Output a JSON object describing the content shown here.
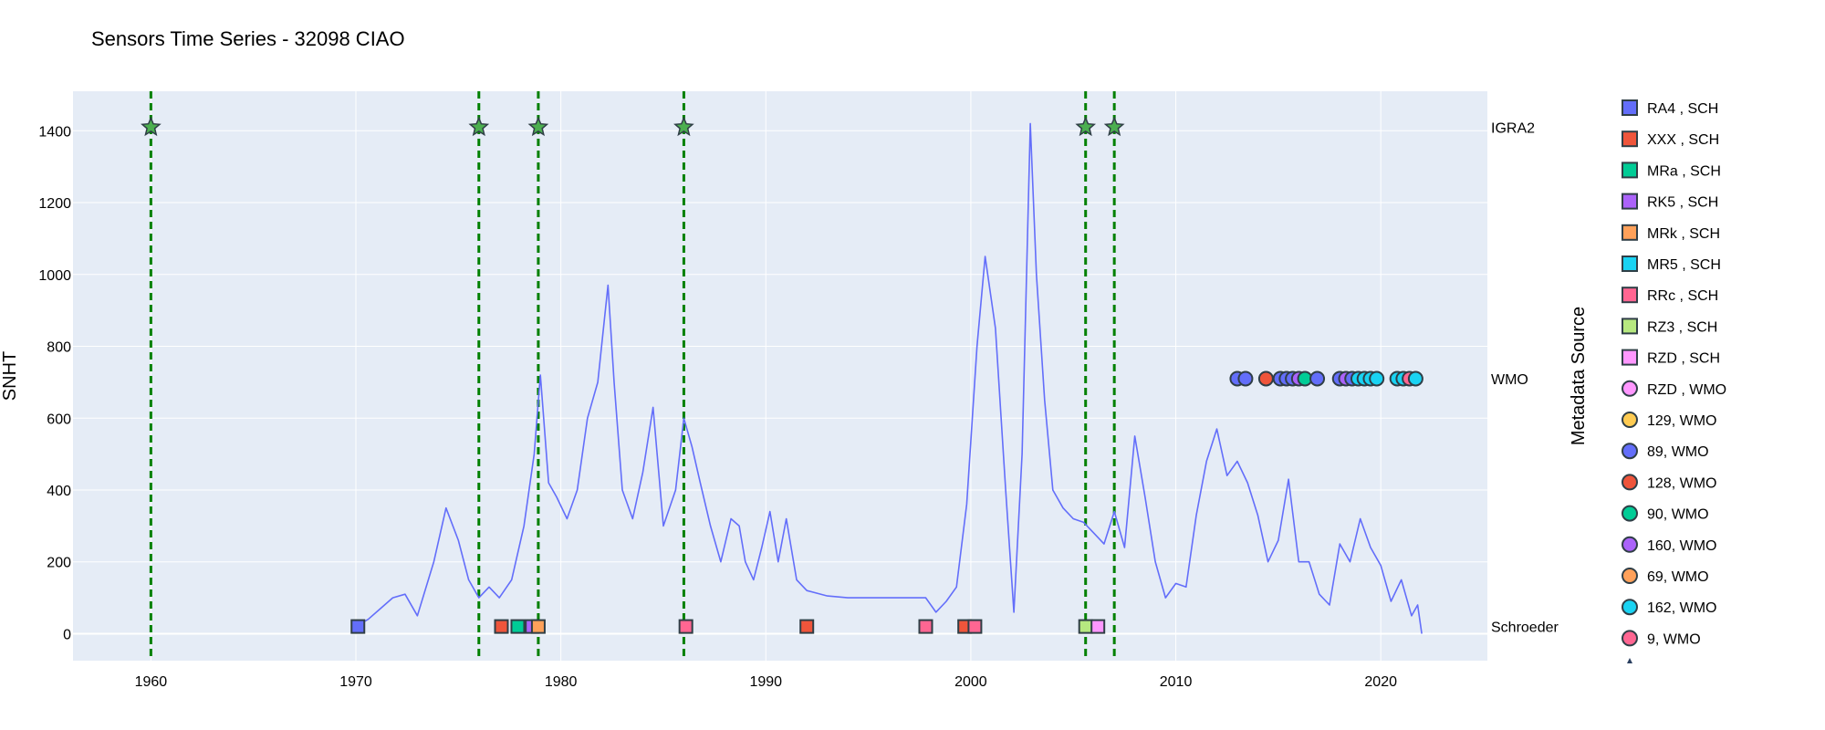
{
  "chart_data": {
    "type": "line",
    "title": "Sensors Time Series - 32098 CIAO",
    "xlabel": "",
    "ylabel": "SNHT",
    "legend_title": "Metadata Source",
    "xlim": [
      1956.2,
      2025.2
    ],
    "ylim": [
      -75,
      1510
    ],
    "x_ticks": [
      1960,
      1970,
      1980,
      1990,
      2000,
      2010,
      2020
    ],
    "y_ticks": [
      0,
      200,
      400,
      600,
      800,
      1000,
      1200,
      1400
    ],
    "grid": true,
    "plot_background": "#E5ECF6",
    "line_color": "#636EFA",
    "line_series": {
      "x": [
        1970.0,
        1970.6,
        1971.2,
        1971.8,
        1972.4,
        1973.0,
        1973.8,
        1974.4,
        1975.0,
        1975.5,
        1976.0,
        1976.5,
        1977.0,
        1977.6,
        1978.2,
        1978.7,
        1979.0,
        1979.4,
        1979.8,
        1980.3,
        1980.8,
        1981.3,
        1981.8,
        1982.3,
        1982.6,
        1983.0,
        1983.5,
        1984.0,
        1984.5,
        1985.0,
        1985.6,
        1986.0,
        1986.4,
        1986.8,
        1987.3,
        1987.8,
        1988.3,
        1988.7,
        1989.0,
        1989.4,
        1989.8,
        1990.2,
        1990.6,
        1991.0,
        1991.5,
        1992.0,
        1993.0,
        1994.0,
        1995.0,
        1996.0,
        1997.0,
        1997.8,
        1998.3,
        1998.8,
        1999.3,
        1999.8,
        2000.3,
        2000.7,
        2001.2,
        2001.7,
        2002.1,
        2002.5,
        2002.9,
        2003.2,
        2003.6,
        2004.0,
        2004.5,
        2005.0,
        2005.5,
        2006.0,
        2006.5,
        2007.0,
        2007.5,
        2008.0,
        2008.5,
        2009.0,
        2009.5,
        2010.0,
        2010.5,
        2011.0,
        2011.5,
        2012.0,
        2012.5,
        2013.0,
        2013.5,
        2014.0,
        2014.5,
        2015.0,
        2015.5,
        2016.0,
        2016.5,
        2017.0,
        2017.5,
        2018.0,
        2018.5,
        2019.0,
        2019.5,
        2020.0,
        2020.5,
        2021.0,
        2021.5,
        2021.8,
        2022.0
      ],
      "y": [
        20,
        40,
        70,
        100,
        110,
        50,
        200,
        350,
        260,
        150,
        100,
        130,
        100,
        150,
        300,
        500,
        720,
        420,
        380,
        320,
        400,
        600,
        700,
        970,
        700,
        400,
        320,
        450,
        630,
        300,
        400,
        600,
        520,
        420,
        300,
        200,
        320,
        300,
        200,
        150,
        240,
        340,
        200,
        320,
        150,
        120,
        105,
        100,
        100,
        100,
        100,
        100,
        60,
        90,
        130,
        360,
        800,
        1050,
        850,
        400,
        60,
        500,
        1420,
        1000,
        650,
        400,
        350,
        320,
        310,
        280,
        250,
        340,
        240,
        550,
        380,
        200,
        100,
        140,
        130,
        330,
        480,
        570,
        440,
        480,
        420,
        330,
        200,
        260,
        430,
        200,
        200,
        110,
        80,
        250,
        200,
        320,
        240,
        190,
        90,
        150,
        50,
        80,
        0
      ]
    },
    "event_lines_x": [
      1960.0,
      1976.0,
      1978.9,
      1986.0,
      2005.6,
      2007.0
    ],
    "row_labels": [
      {
        "label": "IGRA2",
        "y": 1410
      },
      {
        "label": "WMO",
        "y": 710
      },
      {
        "label": "Schroeder",
        "y": 20
      }
    ],
    "igra2_stars": {
      "x": [
        1960.0,
        1976.0,
        1978.9,
        1986.0,
        2005.6,
        2007.0
      ],
      "y": 1410,
      "color": "#4CAF50"
    },
    "schroeder_markers": [
      {
        "x": 1970.1,
        "color": "#636EFA"
      },
      {
        "x": 1977.1,
        "color": "#EF553B"
      },
      {
        "x": 1977.9,
        "color": "#00CC96"
      },
      {
        "x": 1978.6,
        "color": "#AB63FA"
      },
      {
        "x": 1978.9,
        "color": "#FFA15A"
      },
      {
        "x": 1986.1,
        "color": "#FF6692"
      },
      {
        "x": 1992.0,
        "color": "#EF553B"
      },
      {
        "x": 1997.8,
        "color": "#FF6692"
      },
      {
        "x": 1999.7,
        "color": "#EF553B"
      },
      {
        "x": 2000.2,
        "color": "#FF6692"
      },
      {
        "x": 2005.6,
        "color": "#B6E880"
      },
      {
        "x": 2006.2,
        "color": "#FF97FF"
      }
    ],
    "wmo_markers": [
      {
        "x": 2013.0,
        "color": "#636EFA"
      },
      {
        "x": 2013.4,
        "color": "#636EFA"
      },
      {
        "x": 2014.4,
        "color": "#EF553B"
      },
      {
        "x": 2015.1,
        "color": "#636EFA"
      },
      {
        "x": 2015.4,
        "color": "#636EFA"
      },
      {
        "x": 2015.7,
        "color": "#636EFA"
      },
      {
        "x": 2016.0,
        "color": "#AB63FA"
      },
      {
        "x": 2016.3,
        "color": "#00CC96"
      },
      {
        "x": 2016.9,
        "color": "#636EFA"
      },
      {
        "x": 2018.0,
        "color": "#636EFA"
      },
      {
        "x": 2018.3,
        "color": "#AB63FA"
      },
      {
        "x": 2018.6,
        "color": "#636EFA"
      },
      {
        "x": 2018.9,
        "color": "#19D3F3"
      },
      {
        "x": 2019.2,
        "color": "#19D3F3"
      },
      {
        "x": 2019.5,
        "color": "#19D3F3"
      },
      {
        "x": 2019.8,
        "color": "#19D3F3"
      },
      {
        "x": 2020.8,
        "color": "#19D3F3"
      },
      {
        "x": 2021.1,
        "color": "#19D3F3"
      },
      {
        "x": 2021.4,
        "color": "#FF6692"
      },
      {
        "x": 2021.7,
        "color": "#19D3F3"
      }
    ],
    "legend": [
      {
        "label": "RA4 , SCH",
        "symbol": "square",
        "color": "#636EFA"
      },
      {
        "label": "XXX , SCH",
        "symbol": "square",
        "color": "#EF553B"
      },
      {
        "label": "MRa , SCH",
        "symbol": "square",
        "color": "#00CC96"
      },
      {
        "label": "RK5 , SCH",
        "symbol": "square",
        "color": "#AB63FA"
      },
      {
        "label": "MRk , SCH",
        "symbol": "square",
        "color": "#FFA15A"
      },
      {
        "label": "MR5 , SCH",
        "symbol": "square",
        "color": "#19D3F3"
      },
      {
        "label": "RRc , SCH",
        "symbol": "square",
        "color": "#FF6692"
      },
      {
        "label": "RZ3 , SCH",
        "symbol": "square",
        "color": "#B6E880"
      },
      {
        "label": "RZD , SCH",
        "symbol": "square",
        "color": "#FF97FF"
      },
      {
        "label": "RZD , WMO",
        "symbol": "circle",
        "color": "#FF97FF"
      },
      {
        "label": "129, WMO",
        "symbol": "circle",
        "color": "#FECB52"
      },
      {
        "label": "89, WMO",
        "symbol": "circle",
        "color": "#636EFA"
      },
      {
        "label": "128, WMO",
        "symbol": "circle",
        "color": "#EF553B"
      },
      {
        "label": "90, WMO",
        "symbol": "circle",
        "color": "#00CC96"
      },
      {
        "label": "160, WMO",
        "symbol": "circle",
        "color": "#AB63FA"
      },
      {
        "label": "69, WMO",
        "symbol": "circle",
        "color": "#FFA15A"
      },
      {
        "label": "162, WMO",
        "symbol": "circle",
        "color": "#19D3F3"
      },
      {
        "label": "9, WMO",
        "symbol": "circle",
        "color": "#FF6692"
      }
    ]
  }
}
